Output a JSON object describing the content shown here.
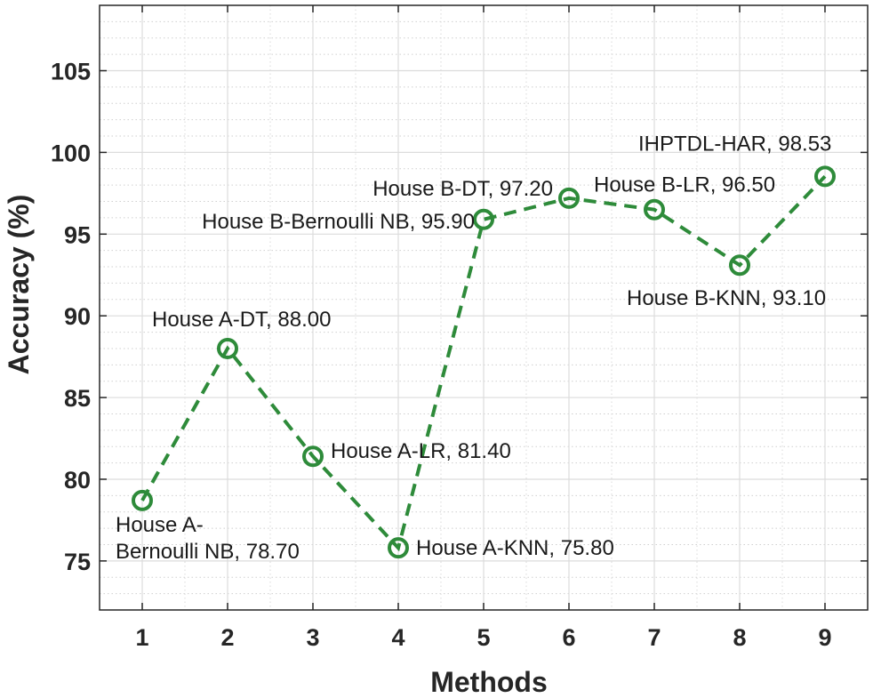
{
  "chart_data": {
    "type": "line",
    "title": "",
    "xlabel": "Methods",
    "ylabel": "Accuracy (%)",
    "x": [
      1,
      2,
      3,
      4,
      5,
      6,
      7,
      8,
      9
    ],
    "xlim": [
      0.5,
      9.5
    ],
    "ylim": [
      72,
      109
    ],
    "xticks": [
      1,
      2,
      3,
      4,
      5,
      6,
      7,
      8,
      9
    ],
    "yticks": [
      75,
      80,
      85,
      90,
      95,
      100,
      105
    ],
    "grid": true,
    "minor_grid": true,
    "line_style": "dashed",
    "marker": "circle",
    "color": "#2e8b3a",
    "series": [
      {
        "values": [
          78.7,
          88.0,
          81.4,
          75.8,
          95.9,
          97.2,
          96.5,
          93.1,
          98.53
        ]
      }
    ],
    "annotations": [
      {
        "x": 1,
        "lines": [
          "House A-",
          "Bernoulli NB, 78.70"
        ]
      },
      {
        "x": 2,
        "lines": [
          "House A-DT, 88.00"
        ]
      },
      {
        "x": 3,
        "lines": [
          "House A-LR, 81.40"
        ]
      },
      {
        "x": 4,
        "lines": [
          "House A-KNN, 75.80"
        ]
      },
      {
        "x": 5,
        "lines": [
          "House B-Bernoulli NB, 95.90"
        ]
      },
      {
        "x": 6,
        "lines": [
          "House B-DT, 97.20"
        ]
      },
      {
        "x": 7,
        "lines": [
          "House B-LR, 96.50"
        ]
      },
      {
        "x": 8,
        "lines": [
          "House B-KNN, 93.10"
        ]
      },
      {
        "x": 9,
        "lines": [
          "IHPTDL-HAR, 98.53"
        ]
      }
    ]
  }
}
